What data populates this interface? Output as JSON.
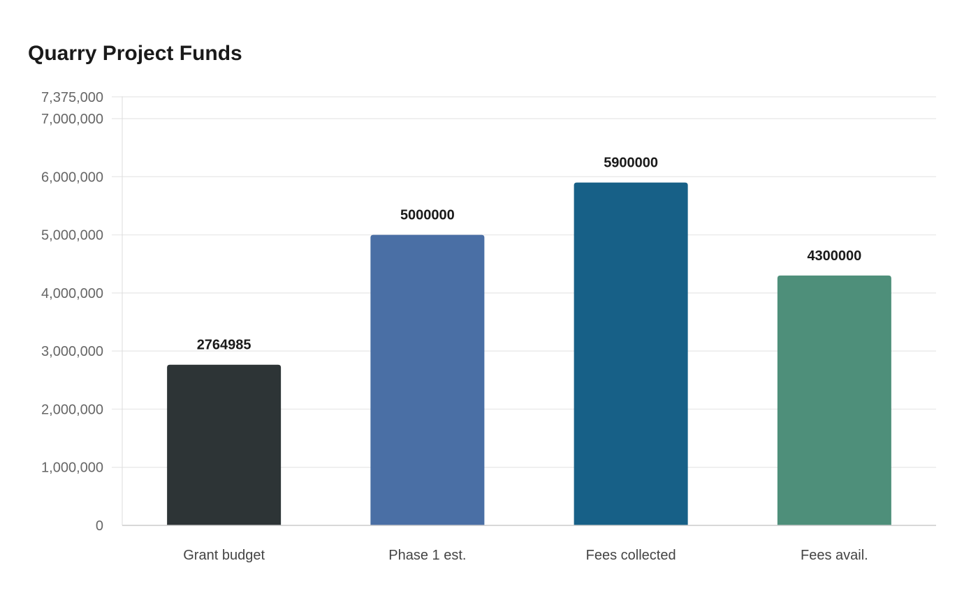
{
  "chart_data": {
    "type": "bar",
    "title": "Quarry Project Funds",
    "xlabel": "",
    "ylabel": "",
    "categories": [
      "Grant budget",
      "Phase 1 est.",
      "Fees collected",
      "Fees avail."
    ],
    "values": [
      2764985,
      5000000,
      5900000,
      4300000
    ],
    "data_labels": [
      "2764985",
      "5000000",
      "5900000",
      "4300000"
    ],
    "colors": [
      "#2d3436",
      "#4a6fa5",
      "#176087",
      "#4e8f7a"
    ],
    "ylim": [
      0,
      7375000
    ],
    "yticks": [
      0,
      1000000,
      2000000,
      3000000,
      4000000,
      5000000,
      6000000,
      7000000,
      7375000
    ],
    "ytick_labels": [
      "0",
      "1,000,000",
      "2,000,000",
      "3,000,000",
      "4,000,000",
      "5,000,000",
      "6,000,000",
      "7,000,000",
      "7,375,000"
    ],
    "grid": true,
    "legend": "none"
  }
}
